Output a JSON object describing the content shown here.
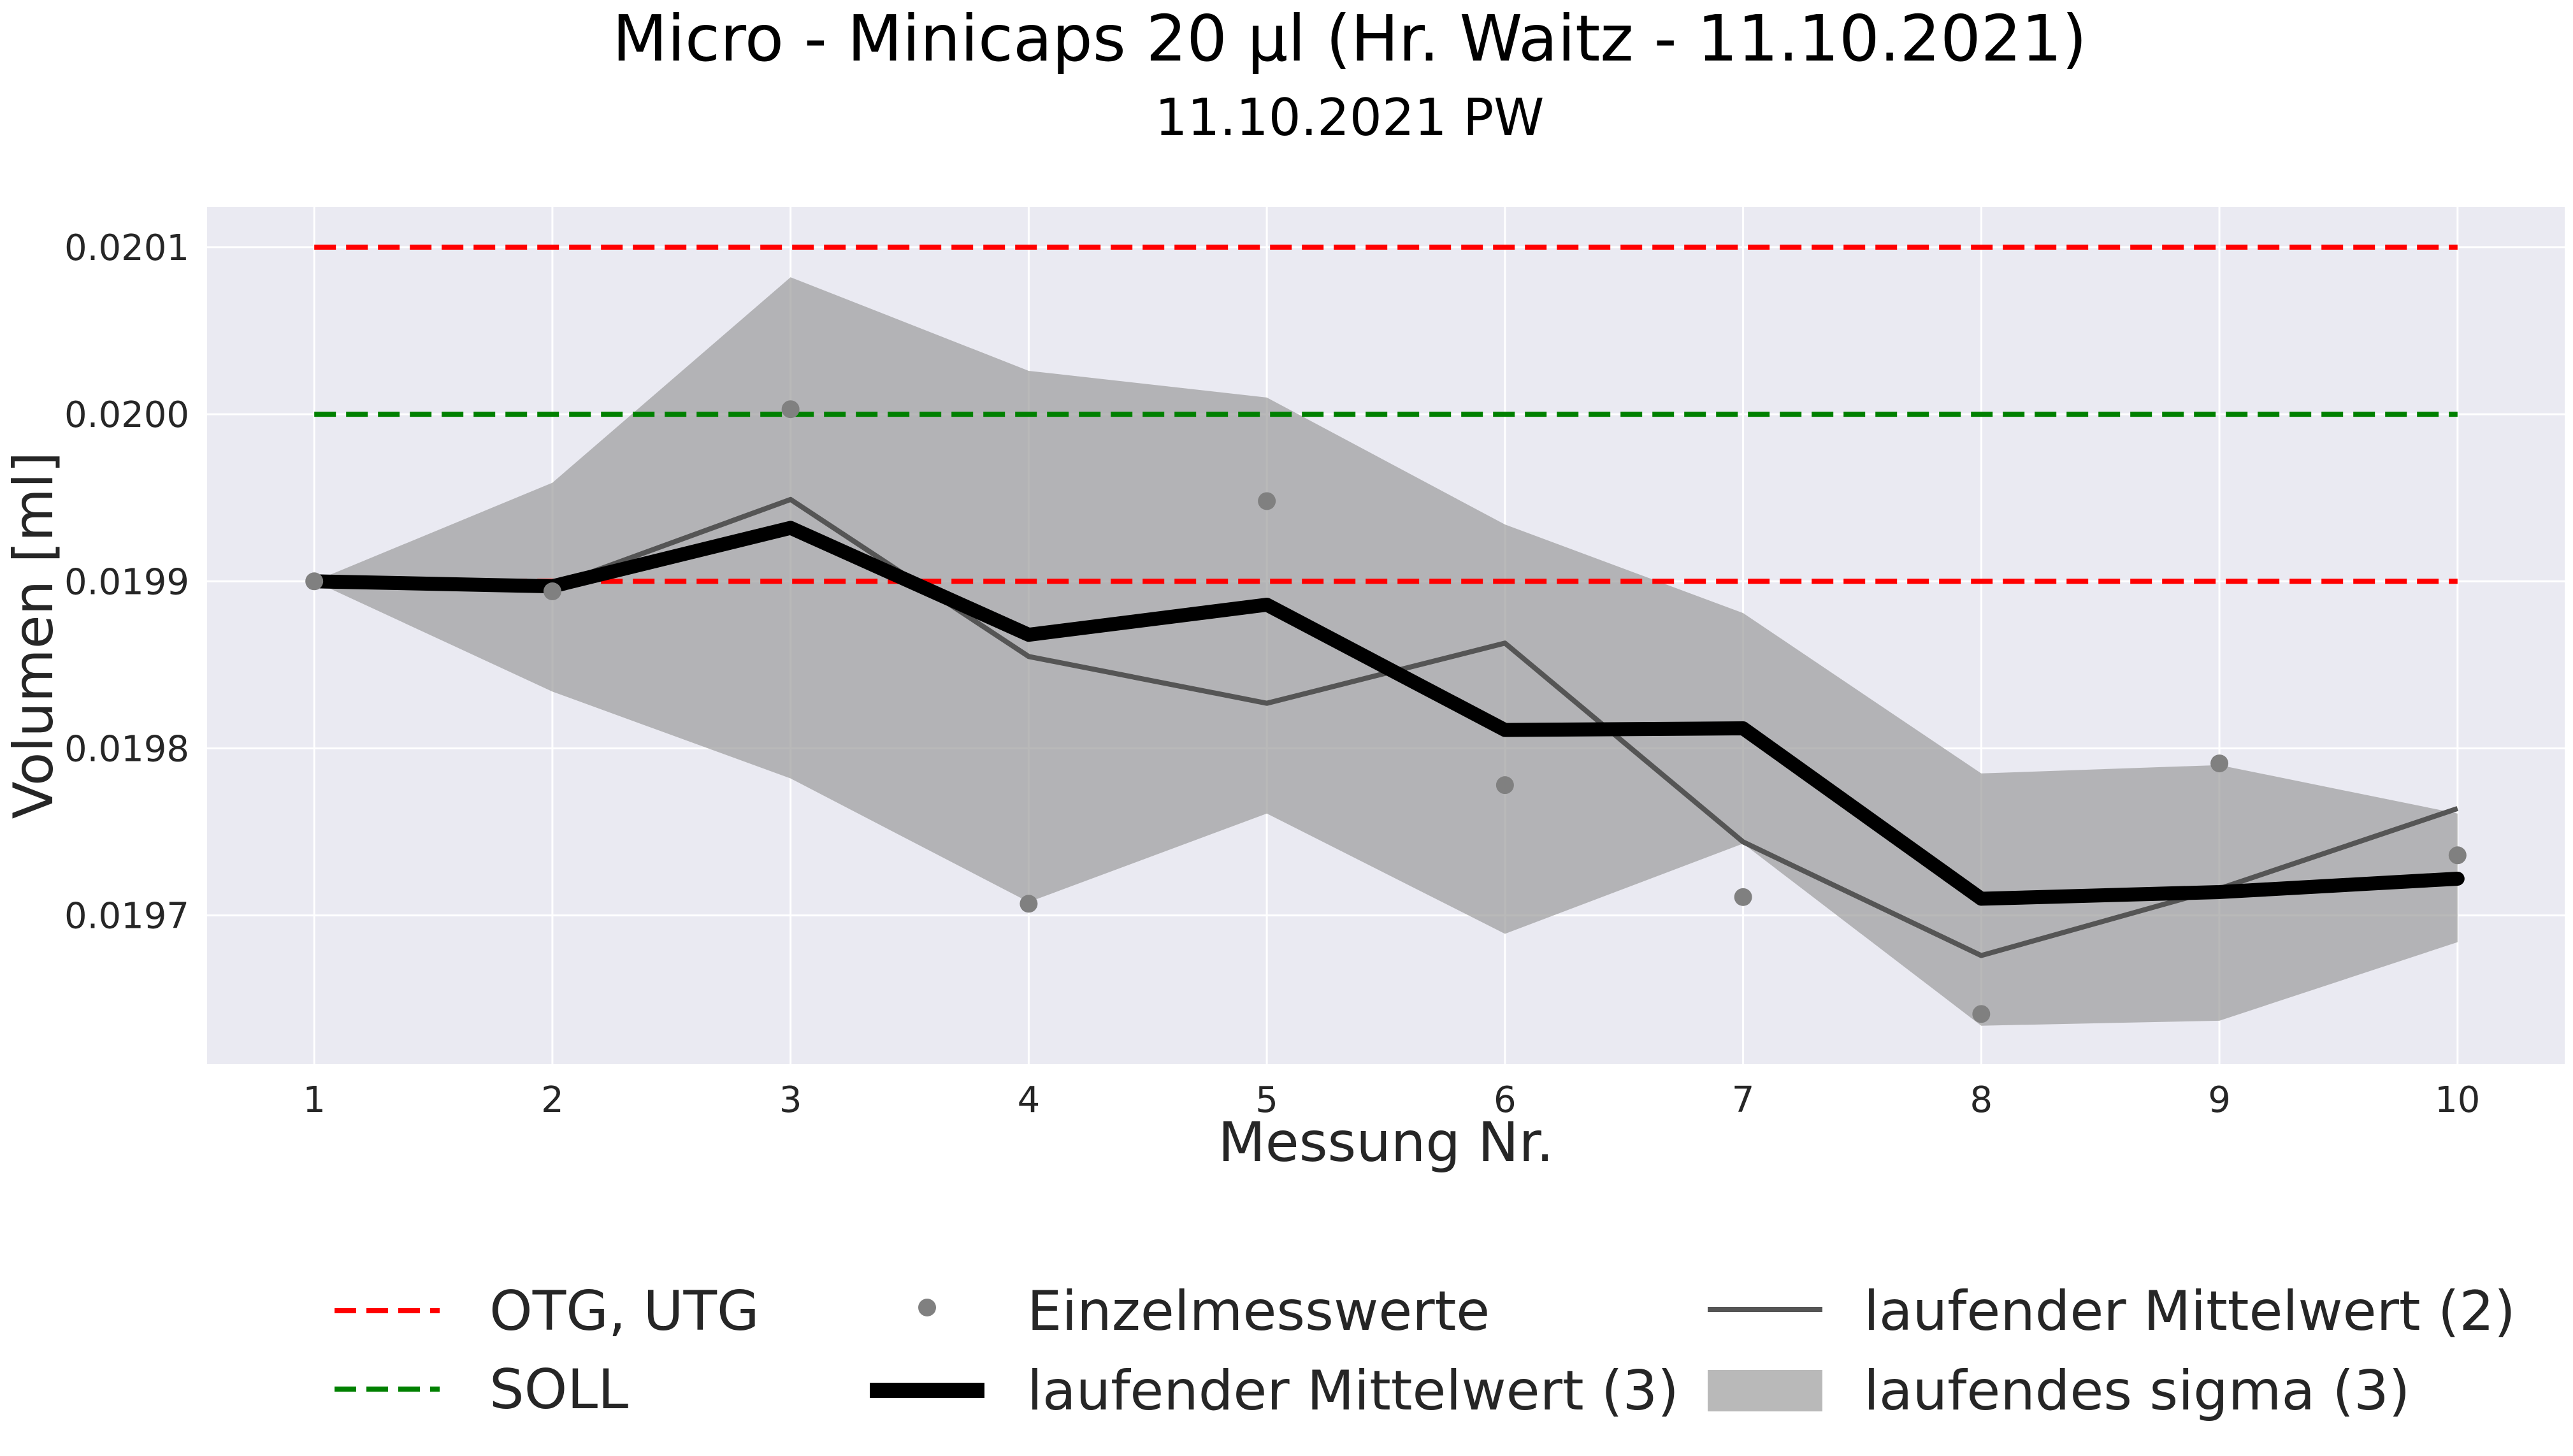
{
  "chart_data": {
    "type": "line",
    "title": "Micro - Minicaps 20 µl (Hr. Waitz - 11.10.2021)",
    "subtitle": "11.10.2021 PW",
    "xlabel": "Messung Nr.",
    "ylabel": "Volumen [ml]",
    "x": [
      1,
      2,
      3,
      4,
      5,
      6,
      7,
      8,
      9,
      10
    ],
    "xlim": [
      0.55,
      10.45
    ],
    "ylim": [
      0.019611,
      0.020124
    ],
    "y_ticks": [
      0.0197,
      0.0198,
      0.0199,
      0.02,
      0.0201
    ],
    "y_tick_labels": [
      "0.0197",
      "0.0198",
      "0.0199",
      "0.0200",
      "0.0201"
    ],
    "grid": true,
    "legend_position": "bottom",
    "horizontal_lines": [
      {
        "name": "OTG, UTG",
        "values": [
          0.0201,
          0.0199
        ],
        "color": "#ff0000",
        "style": "dashed"
      },
      {
        "name": "SOLL",
        "values": [
          0.02
        ],
        "color": "#008000",
        "style": "dashed"
      }
    ],
    "series": [
      {
        "name": "Einzelmesswerte",
        "kind": "points",
        "color": "#808080",
        "values": [
          0.0199,
          0.019894,
          0.020003,
          0.019707,
          0.019948,
          0.019778,
          0.019711,
          0.019641,
          0.019791,
          0.019736
        ]
      },
      {
        "name": "laufender Mittelwert (3)",
        "kind": "line",
        "color": "#000000",
        "values": [
          0.0199,
          0.019897,
          0.019932,
          0.019868,
          0.019886,
          0.019811,
          0.019812,
          0.01971,
          0.019714,
          0.019722
        ]
      },
      {
        "name": "laufender Mittelwert (2)",
        "kind": "line",
        "color": "#555555",
        "values": [
          0.0199,
          0.019897,
          0.019949,
          0.019855,
          0.019827,
          0.019863,
          0.019744,
          0.019676,
          0.019716,
          0.019764
        ]
      },
      {
        "name": "laufendes sigma (3)",
        "kind": "band",
        "color": "#9e9e9e",
        "lower": [
          0.0199,
          0.019834,
          0.019782,
          0.019708,
          0.019761,
          0.019689,
          0.019743,
          0.019634,
          0.019637,
          0.019684
        ],
        "upper": [
          0.0199,
          0.019959,
          0.020082,
          0.020026,
          0.02001,
          0.019934,
          0.019881,
          0.019785,
          0.01979,
          0.019761
        ]
      }
    ]
  }
}
